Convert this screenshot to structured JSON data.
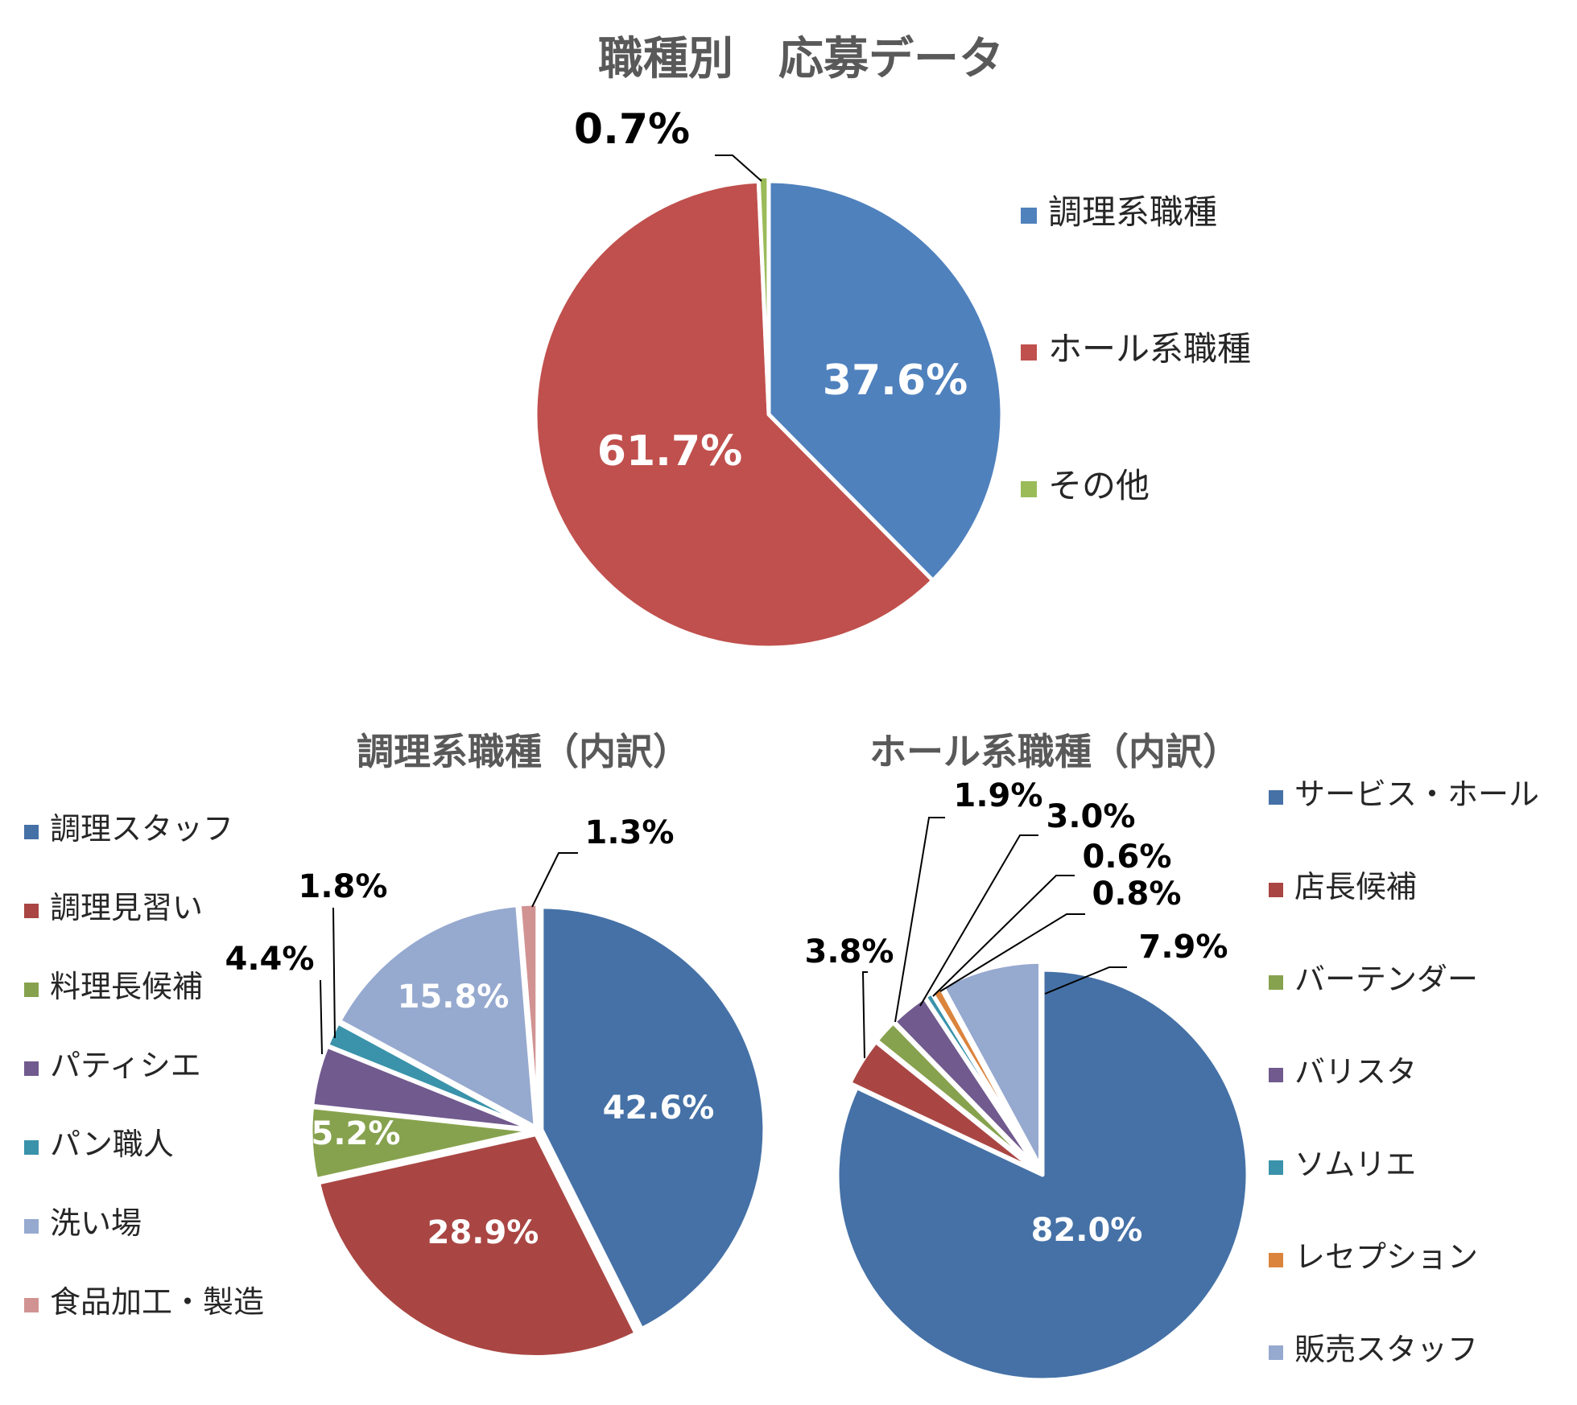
{
  "chart_data": [
    {
      "type": "pie",
      "title": "職種別　応募データ",
      "legend_position": "right",
      "slices": [
        {
          "label": "調理系職種",
          "value": 37.6,
          "value_label": "37.6%",
          "color": "#4f81bd"
        },
        {
          "label": "ホール系職種",
          "value": 61.7,
          "value_label": "61.7%",
          "color": "#c0504d"
        },
        {
          "label": "その他",
          "value": 0.7,
          "value_label": "0.7%",
          "color": "#9bbb59"
        }
      ]
    },
    {
      "type": "pie",
      "title": "調理系職種（内訳）",
      "legend_position": "left",
      "slices": [
        {
          "label": "調理スタッフ",
          "value": 42.6,
          "value_label": "42.6%",
          "color": "#4571a6"
        },
        {
          "label": "調理見習い",
          "value": 28.9,
          "value_label": "28.9%",
          "color": "#a94643"
        },
        {
          "label": "料理長候補",
          "value": 5.2,
          "value_label": "5.2%",
          "color": "#87a24e"
        },
        {
          "label": "パティシエ",
          "value": 4.4,
          "value_label": "4.4%",
          "color": "#715a8e"
        },
        {
          "label": "パン職人",
          "value": 1.8,
          "value_label": "1.8%",
          "color": "#3a93aa"
        },
        {
          "label": "洗い場",
          "value": 15.8,
          "value_label": "15.8%",
          "color": "#96a9cf"
        },
        {
          "label": "食品加工・製造",
          "value": 1.3,
          "value_label": "1.3%",
          "color": "#d19392"
        }
      ]
    },
    {
      "type": "pie",
      "title": "ホール系職種（内訳）",
      "legend_position": "right",
      "slices": [
        {
          "label": "サービス・ホール",
          "value": 82.0,
          "value_label": "82.0%",
          "color": "#4571a6"
        },
        {
          "label": "店長候補",
          "value": 3.8,
          "value_label": "3.8%",
          "color": "#a94643"
        },
        {
          "label": "バーテンダー",
          "value": 1.9,
          "value_label": "1.9%",
          "color": "#87a24e"
        },
        {
          "label": "バリスタ",
          "value": 3.0,
          "value_label": "3.0%",
          "color": "#715a8e"
        },
        {
          "label": "ソムリエ",
          "value": 0.6,
          "value_label": "0.6%",
          "color": "#3a93aa"
        },
        {
          "label": "レセプション",
          "value": 0.8,
          "value_label": "0.8%",
          "color": "#db843d"
        },
        {
          "label": "販売スタッフ",
          "value": 7.9,
          "value_label": "7.9%",
          "color": "#96a9cf"
        }
      ]
    }
  ]
}
